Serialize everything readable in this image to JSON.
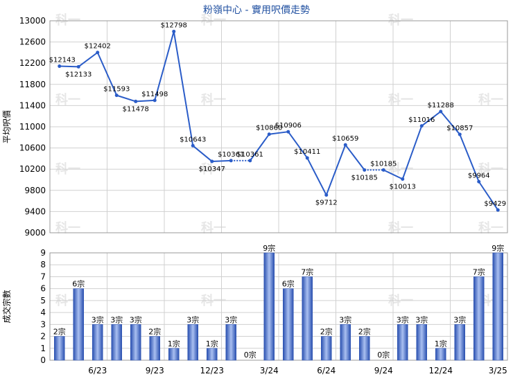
{
  "title": "粉嶺中心 - 實用呎價走勢",
  "colors": {
    "line": "#2a5cc8",
    "grid": "#d0d0d0",
    "title": "#1f4fa0",
    "bar_dark": "#2a50b0",
    "bar_light": "#a9bff0",
    "watermark": "#e6e6e6"
  },
  "watermark": "科一",
  "chart_data": [
    {
      "type": "line",
      "title": "粉嶺中心 - 實用呎價走勢",
      "ylabel": "平均呎價",
      "ylim": [
        9000,
        13000
      ],
      "yticks": [
        "13000",
        "12600",
        "12200",
        "11800",
        "11400",
        "11000",
        "10600",
        "10200",
        "9800",
        "9400",
        "9000"
      ],
      "grid": true,
      "points": [
        {
          "label": "$12143",
          "value": 12143
        },
        {
          "label": "$12133",
          "value": 12133
        },
        {
          "label": "$12402",
          "value": 12402
        },
        {
          "label": "$11593",
          "value": 11593
        },
        {
          "label": "$11478",
          "value": 11478
        },
        {
          "label": "$11498",
          "value": 11498
        },
        {
          "label": "$12798",
          "value": 12798
        },
        {
          "label": "$10643",
          "value": 10643
        },
        {
          "label": "$10347",
          "value": 10347
        },
        {
          "label": "$10361",
          "value": 10361
        },
        {
          "label": "$10361",
          "value": 10361
        },
        {
          "label": "$10860",
          "value": 10860
        },
        {
          "label": "$10906",
          "value": 10906
        },
        {
          "label": "$10411",
          "value": 10411
        },
        {
          "label": "$9712",
          "value": 9712
        },
        {
          "label": "$10659",
          "value": 10659
        },
        {
          "label": "$10185",
          "value": 10185
        },
        {
          "label": "$10185",
          "value": 10185
        },
        {
          "label": "$10013",
          "value": 10013
        },
        {
          "label": "$11016",
          "value": 11016
        },
        {
          "label": "$11288",
          "value": 11288
        },
        {
          "label": "$10857",
          "value": 10857
        },
        {
          "label": "$9964",
          "value": 9964
        },
        {
          "label": "$9429",
          "value": 9429
        }
      ]
    },
    {
      "type": "bar",
      "ylabel": "成交宗數",
      "ylim": [
        0,
        9
      ],
      "yticks": [
        "9",
        "8",
        "7",
        "6",
        "5",
        "4",
        "3",
        "2",
        "1",
        "0"
      ],
      "grid": true,
      "xticks": [
        "6/23",
        "9/23",
        "12/23",
        "3/24",
        "6/24",
        "9/24",
        "12/24",
        "3/25"
      ],
      "values": [
        2,
        6,
        3,
        3,
        3,
        2,
        1,
        3,
        1,
        3,
        0,
        9,
        6,
        7,
        2,
        3,
        2,
        0,
        3,
        3,
        1,
        3,
        7,
        9
      ],
      "value_labels": [
        "2宗",
        "6宗",
        "3宗",
        "3宗",
        "3宗",
        "2宗",
        "1宗",
        "3宗",
        "1宗",
        "3宗",
        "0宗",
        "9宗",
        "6宗",
        "7宗",
        "2宗",
        "3宗",
        "2宗",
        "0宗",
        "3宗",
        "3宗",
        "1宗",
        "3宗",
        "7宗",
        "9宗"
      ]
    }
  ]
}
